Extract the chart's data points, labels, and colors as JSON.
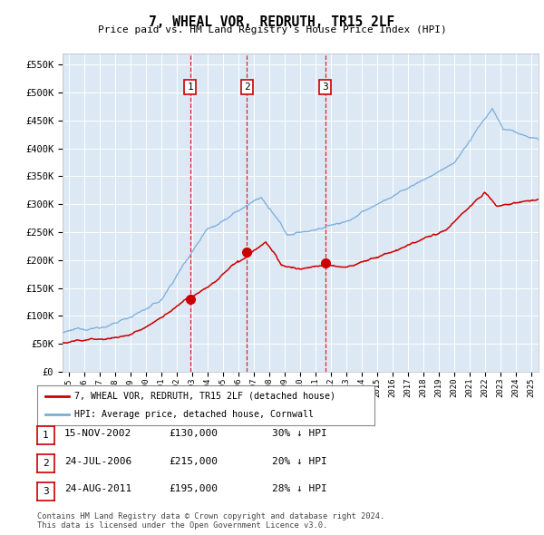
{
  "title": "7, WHEAL VOR, REDRUTH, TR15 2LF",
  "subtitle": "Price paid vs. HM Land Registry's House Price Index (HPI)",
  "ylim": [
    0,
    570000
  ],
  "xlim_start": 1994.6,
  "xlim_end": 2025.5,
  "bg_color": "#dce9f5",
  "grid_color": "#ffffff",
  "red_line_color": "#cc0000",
  "blue_line_color": "#7aaddb",
  "vline_color": "#dd0000",
  "sales": [
    {
      "label": "1",
      "date": "15-NOV-2002",
      "price": 130000,
      "pct": "30%",
      "dir": "↓",
      "x_year": 2002.875
    },
    {
      "label": "2",
      "date": "24-JUL-2006",
      "price": 215000,
      "pct": "20%",
      "dir": "↓",
      "x_year": 2006.56
    },
    {
      "label": "3",
      "date": "24-AUG-2011",
      "price": 195000,
      "pct": "28%",
      "dir": "↓",
      "x_year": 2011.645
    }
  ],
  "legend_entries": [
    "7, WHEAL VOR, REDRUTH, TR15 2LF (detached house)",
    "HPI: Average price, detached house, Cornwall"
  ],
  "footnote1": "Contains HM Land Registry data © Crown copyright and database right 2024.",
  "footnote2": "This data is licensed under the Open Government Licence v3.0.",
  "yticks": [
    0,
    50000,
    100000,
    150000,
    200000,
    250000,
    300000,
    350000,
    400000,
    450000,
    500000,
    550000
  ],
  "ytick_labels": [
    "£0",
    "£50K",
    "£100K",
    "£150K",
    "£200K",
    "£250K",
    "£300K",
    "£350K",
    "£400K",
    "£450K",
    "£500K",
    "£550K"
  ]
}
